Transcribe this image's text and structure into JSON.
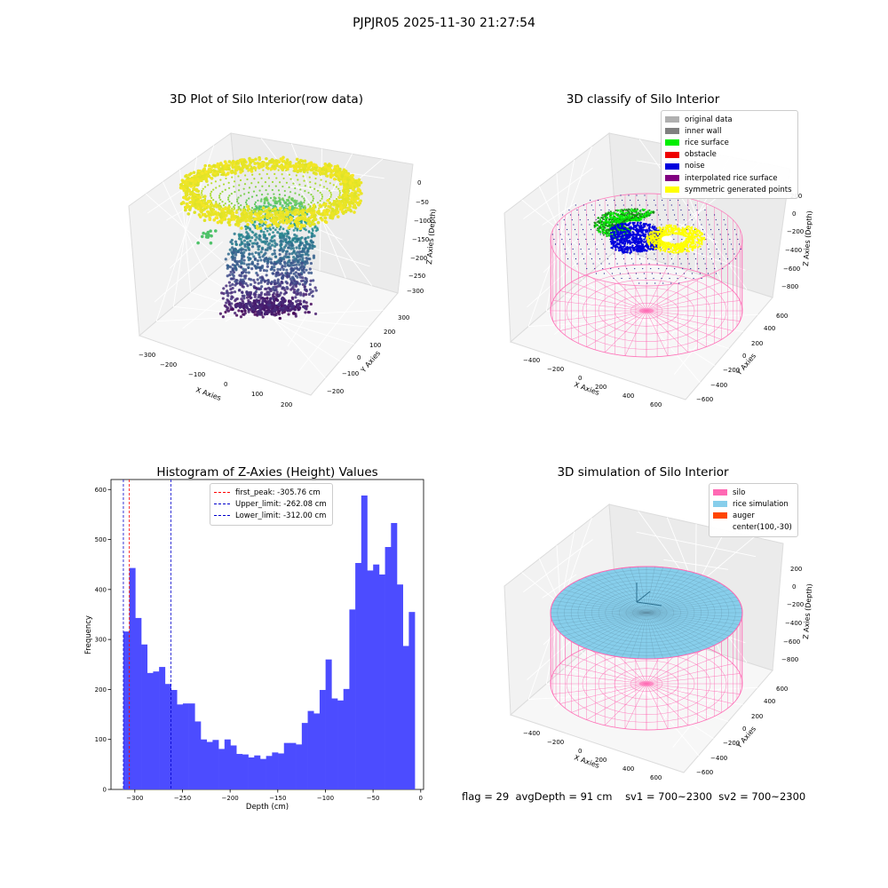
{
  "suptitle": "PJPJR05 2025-11-30 21:27:54",
  "chart_data": [
    {
      "type": "scatter3d",
      "title": "3D Plot of Silo Interior(row data)",
      "xlabel": "X Axies",
      "ylabel": "Y Axies",
      "zlabel": "Z Axies (Depth)",
      "x_ticks": [
        "−300",
        "−200",
        "−100",
        "0",
        "100",
        "200"
      ],
      "y_ticks": [
        "−200",
        "−100",
        "0",
        "100",
        "200",
        "300"
      ],
      "z_ticks": [
        "0",
        "−50",
        "−100",
        "−150",
        "−200",
        "−250",
        "−300"
      ],
      "colormap": "viridis"
    },
    {
      "type": "scatter3d",
      "title": "3D classify of Silo Interior",
      "xlabel": "X Axies",
      "ylabel": "Y Axies",
      "zlabel": "Z Axies (Depth)",
      "x_ticks": [
        "−400",
        "−200",
        "0",
        "200",
        "400",
        "600"
      ],
      "y_ticks": [
        "−600",
        "−400",
        "−200",
        "0",
        "200",
        "400",
        "600"
      ],
      "z_ticks": [
        "200",
        "0",
        "−200",
        "−400",
        "−600",
        "−800"
      ],
      "legend": [
        {
          "label": "original data",
          "color": "#b0b0b0"
        },
        {
          "label": "inner wall",
          "color": "#808080"
        },
        {
          "label": "rice surface",
          "color": "#00ee00"
        },
        {
          "label": "obstacle",
          "color": "#ee0000"
        },
        {
          "label": "noise",
          "color": "#0000dd"
        },
        {
          "label": "interpolated rice surface",
          "color": "#800080"
        },
        {
          "label": "symmetric generated points",
          "color": "#ffff00"
        }
      ]
    },
    {
      "type": "bar",
      "title": "Histogram of Z-Axies (Height) Values",
      "xlabel": "Depth (cm)",
      "ylabel": "Frequency",
      "xlim": [
        -325,
        3
      ],
      "ylim": [
        0,
        620
      ],
      "x_ticks": [
        -300,
        -250,
        -200,
        -150,
        -100,
        -50,
        0
      ],
      "x_tick_labels": [
        "−300",
        "−250",
        "−200",
        "−150",
        "−100",
        "−50",
        "0"
      ],
      "y_ticks": [
        0,
        100,
        200,
        300,
        400,
        500,
        600
      ],
      "bin_start": -312,
      "bin_width": 6.24,
      "values": [
        316,
        443,
        343,
        290,
        233,
        236,
        245,
        211,
        199,
        170,
        172,
        172,
        136,
        100,
        95,
        99,
        81,
        100,
        88,
        71,
        70,
        64,
        68,
        61,
        67,
        74,
        72,
        93,
        93,
        90,
        133,
        157,
        152,
        199,
        260,
        182,
        178,
        201,
        360,
        453,
        588,
        438,
        450,
        430,
        485,
        533,
        410,
        287,
        355
      ],
      "bar_color": "#4c4cff",
      "lines": [
        {
          "label": "first_peak: -305.76 cm",
          "x": -305.76,
          "color": "#ff0000"
        },
        {
          "label": "Upper_limit: -262.08 cm",
          "x": -262.08,
          "color": "#0000cc"
        },
        {
          "label": "Lower_limit: -312.00 cm",
          "x": -312.0,
          "color": "#0000cc"
        }
      ]
    },
    {
      "type": "surface3d",
      "title": "3D simulation of Silo Interior",
      "xlabel": "X Axies",
      "ylabel": "Y Axies",
      "zlabel": "Z Axies (Depth)",
      "x_ticks": [
        "−400",
        "−200",
        "0",
        "200",
        "400",
        "600"
      ],
      "y_ticks": [
        "−600",
        "−400",
        "−200",
        "0",
        "200",
        "400",
        "600"
      ],
      "z_ticks": [
        "200",
        "0",
        "−200",
        "−400",
        "−600",
        "−800"
      ],
      "legend": [
        {
          "label": "silo",
          "color": "#ff69b4"
        },
        {
          "label": "rice simulation",
          "color": "#87ceeb"
        },
        {
          "label": "auger",
          "color": "#ff4500"
        },
        {
          "label": "center(100,-30)",
          "color": ""
        }
      ]
    }
  ],
  "footer": {
    "flag": "flag = 29",
    "avg_depth": "avgDepth = 91 cm",
    "sv1": "sv1 = 700~2300",
    "sv2": "sv2 = 700~2300"
  }
}
